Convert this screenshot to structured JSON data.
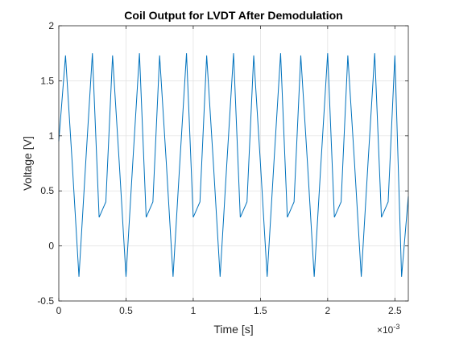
{
  "chart_data": {
    "type": "line",
    "title": "Coil Output for LVDT After Demodulation",
    "xlabel": "Time [s]",
    "ylabel": "Voltage [V]",
    "x_exponent_label": "×10",
    "x_exponent_power": "-3",
    "xlim": [
      0,
      0.0026
    ],
    "ylim": [
      -0.5,
      2
    ],
    "x_ticks": [
      0,
      0.0005,
      0.001,
      0.0015,
      0.002,
      0.0025
    ],
    "x_tick_labels": [
      "0",
      "0.5",
      "1",
      "1.5",
      "2",
      "2.5"
    ],
    "y_ticks": [
      -0.5,
      0,
      0.5,
      1,
      1.5,
      2
    ],
    "y_tick_labels": [
      "-0.5",
      "0",
      "0.5",
      "1",
      "1.5",
      "2"
    ],
    "grid": true,
    "color": "#0072BD",
    "series": [
      {
        "x": [
          0,
          5e-05,
          0.0001,
          0.00015,
          0.0002,
          0.00025,
          0.0003,
          0.00035,
          0.0004,
          0.00045,
          0.0005,
          0.00055,
          0.0006,
          0.00065,
          0.0007,
          0.00075,
          0.0008,
          0.00085,
          0.0009,
          0.00095,
          0.001,
          0.00105,
          0.0011,
          0.00115,
          0.0012,
          0.00125,
          0.0013,
          0.00135,
          0.0014,
          0.00145,
          0.0015,
          0.00155,
          0.0016,
          0.00165,
          0.0017,
          0.00175,
          0.0018,
          0.00185,
          0.0019,
          0.00195,
          0.002,
          0.00205,
          0.0021,
          0.00215,
          0.0022,
          0.00225,
          0.0023,
          0.00235,
          0.0024,
          0.00245,
          0.0025,
          0.00255,
          0.0026
        ],
        "y": [
          0.95,
          1.73,
          0.75,
          -0.28,
          0.75,
          1.75,
          0.26,
          0.4,
          1.73,
          0.75,
          -0.28,
          0.75,
          1.75,
          0.26,
          0.4,
          1.73,
          0.75,
          -0.28,
          0.75,
          1.75,
          0.26,
          0.4,
          1.73,
          0.75,
          -0.28,
          0.75,
          1.75,
          0.26,
          0.4,
          1.73,
          0.75,
          -0.28,
          0.75,
          1.75,
          0.26,
          0.4,
          1.73,
          0.75,
          -0.28,
          0.75,
          1.75,
          0.26,
          0.4,
          1.73,
          0.75,
          -0.28,
          0.75,
          1.75,
          0.26,
          0.4,
          1.73,
          -0.28,
          0.45
        ]
      }
    ]
  }
}
